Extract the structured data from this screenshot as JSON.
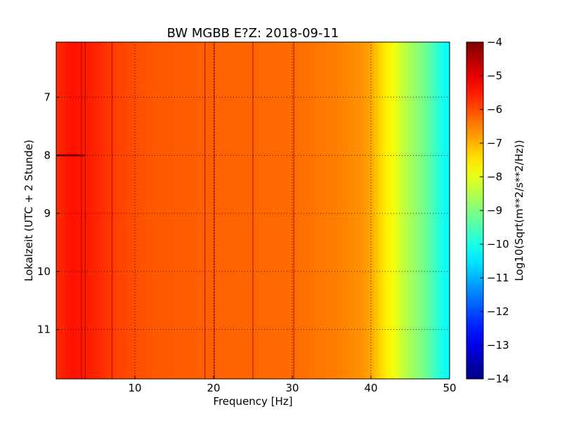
{
  "chart_data": {
    "type": "heatmap",
    "title": "BW MGBB E?Z: 2018-09-11",
    "xlabel": "Frequency [Hz]",
    "ylabel": "Lokalzeit (UTC + 2 Stunde)",
    "colorbar_label": "Log10(Sqrt(m**2/s**2/Hz))",
    "xlim": [
      0,
      50
    ],
    "ylim": [
      11.85,
      6.05
    ],
    "y_inverted": true,
    "grid": true,
    "xticks": [
      10,
      20,
      30,
      40,
      50
    ],
    "yticks": [
      7,
      8,
      9,
      10,
      11
    ],
    "colorbar": {
      "colormap": "jet",
      "range": [
        -14,
        -4
      ],
      "ticks": [
        -4,
        -5,
        -6,
        -7,
        -8,
        -9,
        -10,
        -11,
        -12,
        -13,
        -14
      ]
    },
    "spectrum_profile": {
      "frequency_hz": [
        0,
        2,
        5,
        8,
        12,
        20,
        30,
        36,
        39,
        40,
        41,
        42,
        43,
        44,
        45,
        46,
        47,
        48,
        49,
        50
      ],
      "log10_amplitude": [
        -5.7,
        -5.4,
        -5.6,
        -5.9,
        -6.1,
        -6.2,
        -6.3,
        -6.5,
        -6.7,
        -6.9,
        -7.3,
        -7.6,
        -7.9,
        -8.3,
        -8.6,
        -8.9,
        -9.2,
        -9.6,
        -10.0,
        -10.3
      ]
    },
    "line_features_hz": [
      3.2,
      3.7,
      7.1,
      18.9,
      20.1,
      25.0,
      30.2
    ],
    "strong_band_hours": [
      8.0
    ]
  }
}
